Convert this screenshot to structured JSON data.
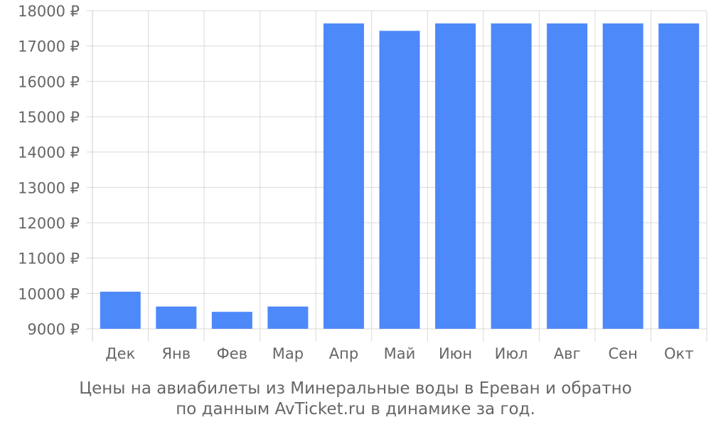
{
  "chart_data": {
    "type": "bar",
    "categories": [
      "Дек",
      "Янв",
      "Фев",
      "Мар",
      "Апр",
      "Май",
      "Июн",
      "Июл",
      "Авг",
      "Сен",
      "Окт"
    ],
    "values": [
      10050,
      9630,
      9480,
      9630,
      17640,
      17430,
      17640,
      17640,
      17640,
      17640,
      17640
    ],
    "yticks": [
      "9000 ₽",
      "10000 ₽",
      "11000 ₽",
      "12000 ₽",
      "13000 ₽",
      "14000 ₽",
      "15000 ₽",
      "16000 ₽",
      "17000 ₽",
      "18000 ₽"
    ],
    "ylim": [
      9000,
      18000
    ],
    "grid": true,
    "bar_color": "#4d89f9",
    "grid_color": "#d9d9d9"
  },
  "caption": {
    "line1": "Цены на авиабилеты из Минеральные воды в Ереван и обратно",
    "line2": "по данным AvTicket.ru в динамике за год."
  }
}
